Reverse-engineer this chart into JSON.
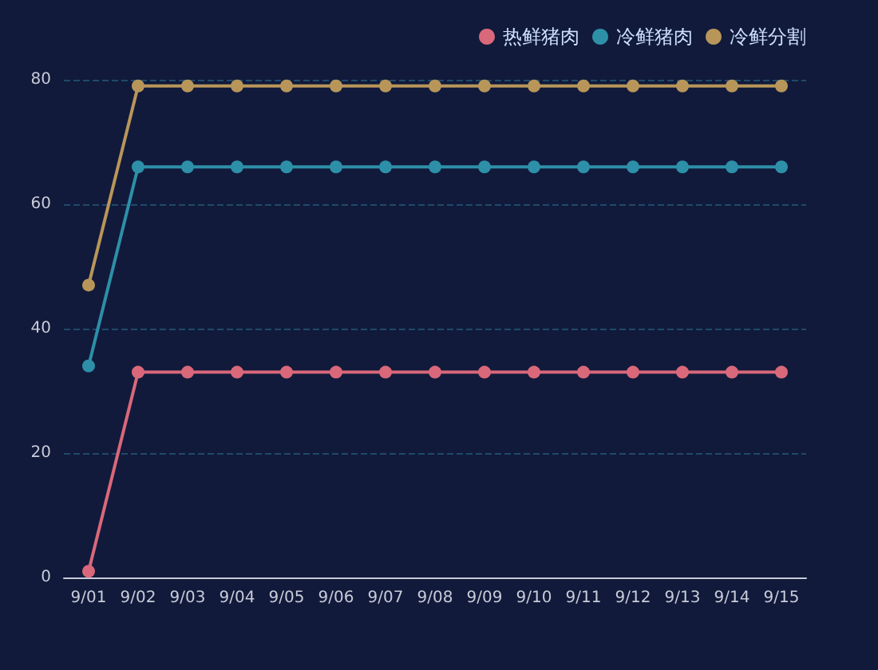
{
  "chart_data": {
    "type": "line",
    "categories": [
      "9/01",
      "9/02",
      "9/03",
      "9/04",
      "9/05",
      "9/06",
      "9/07",
      "9/08",
      "9/09",
      "9/10",
      "9/11",
      "9/12",
      "9/13",
      "9/14",
      "9/15"
    ],
    "series": [
      {
        "name": "热鲜猪肉",
        "color": "#d9687a",
        "values": [
          1,
          33,
          33,
          33,
          33,
          33,
          33,
          33,
          33,
          33,
          33,
          33,
          33,
          33,
          33
        ]
      },
      {
        "name": "冷鲜猪肉",
        "color": "#2e8fa8",
        "values": [
          34,
          66,
          66,
          66,
          66,
          66,
          66,
          66,
          66,
          66,
          66,
          66,
          66,
          66,
          66
        ]
      },
      {
        "name": "冷鲜分割",
        "color": "#b8965a",
        "values": [
          47,
          79,
          79,
          79,
          79,
          79,
          79,
          79,
          79,
          79,
          79,
          79,
          79,
          79,
          79
        ]
      }
    ],
    "ylim": [
      0,
      80
    ],
    "yticks": [
      0,
      20,
      40,
      60,
      80
    ],
    "grid": "y",
    "legend": "top right",
    "marker": "circle",
    "line_style": "solid"
  }
}
